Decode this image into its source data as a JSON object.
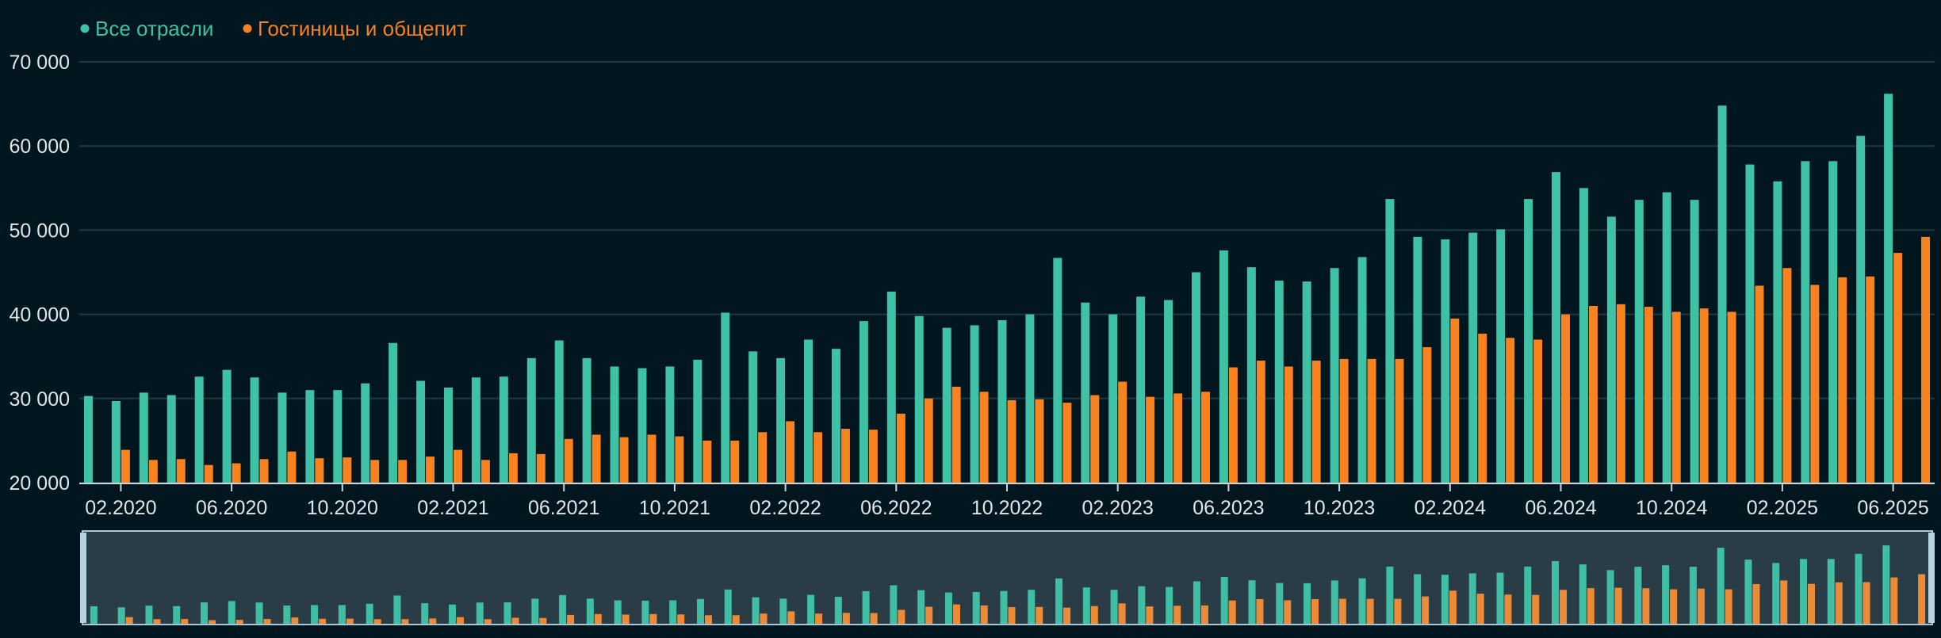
{
  "colors": {
    "background": "#01161e",
    "series_all": "#3ec1a5",
    "series_hotels": "#f7821f",
    "grid": "#1c3a42",
    "axis_text": "#dfe6e9",
    "navigator_bg": "#2a3d46",
    "navigator_border": "#a8c8d8"
  },
  "chart_data": {
    "type": "bar",
    "legend_position": "top-left",
    "grid": true,
    "ylim": [
      20000,
      70000
    ],
    "y_ticks": [
      "20 000",
      "30 000",
      "40 000",
      "50 000",
      "60 000",
      "70 000"
    ],
    "y_tick_values": [
      20000,
      30000,
      40000,
      50000,
      60000,
      70000
    ],
    "x_tick_labels": [
      "02.2020",
      "06.2020",
      "10.2020",
      "02.2021",
      "06.2021",
      "10.2021",
      "02.2022",
      "06.2022",
      "10.2022",
      "02.2023",
      "06.2023",
      "10.2023",
      "02.2024",
      "06.2024",
      "10.2024",
      "02.2025",
      "06.2025"
    ],
    "categories": [
      "01.2020",
      "02.2020",
      "03.2020",
      "04.2020",
      "05.2020",
      "06.2020",
      "07.2020",
      "08.2020",
      "09.2020",
      "10.2020",
      "11.2020",
      "12.2020",
      "01.2021",
      "02.2021",
      "03.2021",
      "04.2021",
      "05.2021",
      "06.2021",
      "07.2021",
      "08.2021",
      "09.2021",
      "10.2021",
      "11.2021",
      "12.2021",
      "01.2022",
      "02.2022",
      "03.2022",
      "04.2022",
      "05.2022",
      "06.2022",
      "07.2022",
      "08.2022",
      "09.2022",
      "10.2022",
      "11.2022",
      "12.2022",
      "01.2023",
      "02.2023",
      "03.2023",
      "04.2023",
      "05.2023",
      "06.2023",
      "07.2023",
      "08.2023",
      "09.2023",
      "10.2023",
      "11.2023",
      "12.2023",
      "01.2024",
      "02.2024",
      "03.2024",
      "04.2024",
      "05.2024",
      "06.2024",
      "07.2024",
      "08.2024",
      "09.2024",
      "10.2024",
      "11.2024",
      "12.2024",
      "01.2025",
      "02.2025",
      "03.2025",
      "04.2025",
      "05.2025",
      "06.2025",
      "07.2025"
    ],
    "series": [
      {
        "name": "Все отрасли",
        "values": [
          30300,
          29700,
          30700,
          30400,
          32600,
          33400,
          32500,
          30700,
          31000,
          31000,
          31800,
          36600,
          32100,
          31300,
          32500,
          32600,
          34800,
          36900,
          34800,
          33800,
          33600,
          33800,
          34600,
          40200,
          35600,
          34800,
          37000,
          35900,
          39200,
          42700,
          39800,
          38400,
          38700,
          39300,
          40000,
          46700,
          41400,
          40000,
          42100,
          41700,
          45000,
          47600,
          45600,
          44000,
          43900,
          45500,
          46800,
          53700,
          49200,
          48900,
          49700,
          50100,
          53700,
          56900,
          55000,
          51600,
          53600,
          54500,
          53600,
          64800,
          57800,
          55800,
          58200,
          58200,
          61200,
          66200,
          null
        ]
      },
      {
        "name": "Гостиницы и общепит",
        "values": [
          null,
          23900,
          22700,
          22800,
          22100,
          22300,
          22800,
          23700,
          22900,
          23000,
          22700,
          22700,
          23100,
          23900,
          22700,
          23500,
          23400,
          25200,
          25700,
          25400,
          25700,
          25500,
          25000,
          25000,
          26000,
          27300,
          26000,
          26400,
          26300,
          28200,
          30000,
          31400,
          30800,
          29800,
          29900,
          29500,
          30400,
          32000,
          30200,
          30600,
          30800,
          33700,
          34500,
          33800,
          34500,
          34700,
          34700,
          34700,
          36100,
          39500,
          37700,
          37200,
          37000,
          40000,
          41000,
          41200,
          40900,
          40300,
          40700,
          40300,
          43400,
          45500,
          43500,
          44400,
          44500,
          47300,
          49200
        ]
      }
    ]
  }
}
